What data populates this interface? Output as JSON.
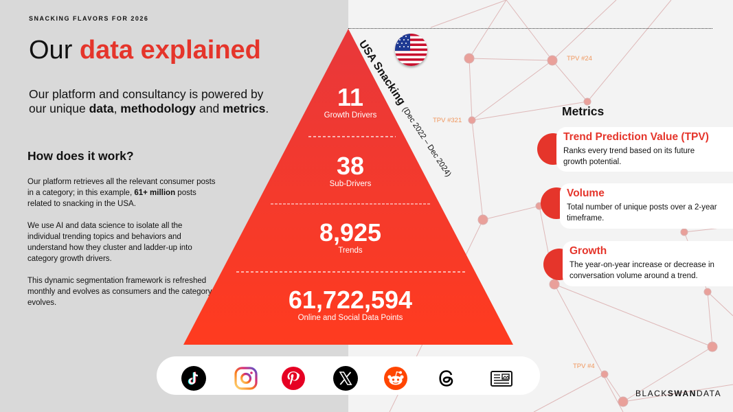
{
  "header": {
    "eyebrow": "SNACKING FLAVORS FOR 2026",
    "title_plain": "Our ",
    "title_accent": "data explained"
  },
  "intro": {
    "part1": "Our platform and consultancy is powered by our unique ",
    "bold1": "data",
    "sep1": ", ",
    "bold2": "methodology",
    "part2": " and ",
    "bold3": "metrics",
    "end": "."
  },
  "how": {
    "title": "How does it work?",
    "p1_a": "Our platform retrieves all the relevant consumer posts in a category; in this example, ",
    "p1_bold": "61+ million",
    "p1_b": " posts related to snacking in the USA.",
    "p2": "We use AI and data science to isolate all the individual trending topics and behaviors and understand how they cluster and ladder-up into category growth drivers.",
    "p3": "This dynamic segmentation framework is refreshed monthly and evolves as consumers and the category evolves."
  },
  "pyramid": {
    "tiers": [
      {
        "value": "11",
        "label": "Growth Drivers"
      },
      {
        "value": "38",
        "label": "Sub-Drivers"
      },
      {
        "value": "8,925",
        "label": "Trends"
      },
      {
        "value": "61,722,594",
        "label": "Online and Social Data Points"
      }
    ],
    "side_title": "USA Snacking",
    "side_range": "(Dec 2022 – Dec 2024)"
  },
  "tpv_tags": [
    "TPV #24",
    "TPV #321",
    "TPV #4"
  ],
  "metrics": {
    "title": "Metrics",
    "items": [
      {
        "title": "Trend Prediction Value (TPV)",
        "desc": "Ranks every trend based on its future growth potential."
      },
      {
        "title": "Volume",
        "desc": "Total number of unique posts over a 2-year timeframe."
      },
      {
        "title": "Growth",
        "desc": "The year-on-year increase or decrease in conversation volume around a trend."
      }
    ]
  },
  "social_icons": [
    "tiktok-icon",
    "instagram-icon",
    "pinterest-icon",
    "x-icon",
    "reddit-icon",
    "threads-icon",
    "news-icon"
  ],
  "brand": {
    "part1": "BLACK",
    "part2": "SWAN",
    "part3": "DATA"
  },
  "colors": {
    "accent": "#e5352b",
    "left_panel": "#d9d9d9",
    "right_panel": "#f3f3f3"
  }
}
